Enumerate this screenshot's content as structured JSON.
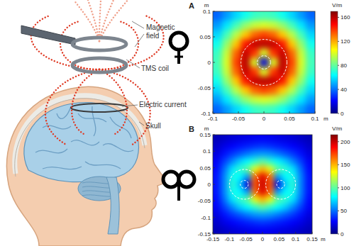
{
  "illustration": {
    "labels": [
      "Magnetic field",
      "TMS coil",
      "Electric current",
      "Skull"
    ]
  },
  "chart_data": [
    {
      "type": "heatmap",
      "title": "A",
      "xlabel": "m",
      "ylabel": "m",
      "xlim": [
        -0.1,
        0.1
      ],
      "ylim": [
        -0.1,
        0.1
      ],
      "xticks": [
        -0.1,
        -0.05,
        0,
        0.05,
        0.1
      ],
      "yticks": [
        -0.1,
        -0.05,
        0,
        0.05,
        0.1
      ],
      "cells": [
        [
          38,
          47,
          57,
          66,
          73,
          75,
          73,
          66,
          57,
          47,
          38
        ],
        [
          47,
          60,
          75,
          88,
          97,
          100,
          97,
          88,
          75,
          60,
          47
        ],
        [
          57,
          75,
          94,
          115,
          132,
          138,
          132,
          115,
          94,
          75,
          57
        ],
        [
          66,
          88,
          115,
          145,
          158,
          160,
          158,
          145,
          115,
          88,
          66
        ],
        [
          73,
          97,
          132,
          158,
          140,
          100,
          140,
          158,
          132,
          97,
          73
        ],
        [
          75,
          100,
          138,
          160,
          100,
          15,
          100,
          160,
          138,
          100,
          75
        ],
        [
          73,
          97,
          132,
          158,
          140,
          100,
          140,
          158,
          132,
          97,
          73
        ],
        [
          66,
          88,
          115,
          145,
          158,
          160,
          158,
          145,
          115,
          88,
          66
        ],
        [
          57,
          75,
          94,
          115,
          132,
          138,
          132,
          115,
          94,
          75,
          57
        ],
        [
          47,
          60,
          75,
          88,
          97,
          100,
          97,
          88,
          75,
          60,
          47
        ],
        [
          38,
          47,
          57,
          66,
          73,
          75,
          73,
          66,
          57,
          47,
          38
        ]
      ],
      "colorbar": {
        "label": "V/m",
        "range": [
          0,
          170
        ],
        "ticks": [
          0,
          40,
          80,
          120,
          160
        ]
      }
    },
    {
      "type": "heatmap",
      "title": "B",
      "xlabel": "m",
      "ylabel": "m",
      "xlim": [
        -0.15,
        0.15
      ],
      "ylim": [
        -0.15,
        0.15
      ],
      "xticks": [
        -0.15,
        -0.1,
        -0.05,
        0,
        0.05,
        0.1,
        0.15
      ],
      "yticks": [
        -0.15,
        -0.1,
        -0.05,
        0,
        0.05,
        0.1,
        0.15
      ],
      "cells": [
        [
          12,
          15,
          18,
          20,
          22,
          24,
          25,
          24,
          22,
          20,
          18,
          15,
          12
        ],
        [
          16,
          22,
          26,
          30,
          33,
          36,
          38,
          36,
          33,
          30,
          26,
          22,
          16
        ],
        [
          20,
          30,
          38,
          45,
          52,
          58,
          60,
          58,
          52,
          45,
          38,
          30,
          20
        ],
        [
          25,
          40,
          55,
          70,
          80,
          90,
          100,
          90,
          80,
          70,
          55,
          40,
          25
        ],
        [
          28,
          50,
          75,
          90,
          100,
          130,
          150,
          130,
          100,
          90,
          75,
          50,
          28
        ],
        [
          30,
          55,
          85,
          80,
          60,
          165,
          195,
          165,
          60,
          80,
          85,
          55,
          30
        ],
        [
          30,
          55,
          90,
          70,
          20,
          170,
          200,
          170,
          20,
          70,
          90,
          55,
          30
        ],
        [
          30,
          55,
          85,
          80,
          60,
          165,
          195,
          165,
          60,
          80,
          85,
          55,
          30
        ],
        [
          28,
          50,
          75,
          90,
          100,
          130,
          150,
          130,
          100,
          90,
          75,
          50,
          28
        ],
        [
          25,
          40,
          55,
          70,
          80,
          90,
          100,
          90,
          80,
          70,
          55,
          40,
          25
        ],
        [
          20,
          30,
          38,
          45,
          52,
          58,
          60,
          58,
          52,
          45,
          38,
          30,
          20
        ],
        [
          16,
          22,
          26,
          30,
          33,
          36,
          38,
          36,
          33,
          30,
          26,
          22,
          16
        ],
        [
          12,
          15,
          18,
          20,
          22,
          24,
          25,
          24,
          22,
          20,
          18,
          15,
          12
        ]
      ],
      "colorbar": {
        "label": "V/m",
        "range": [
          0,
          215
        ],
        "ticks": [
          0,
          50,
          100,
          150,
          200
        ]
      }
    }
  ]
}
